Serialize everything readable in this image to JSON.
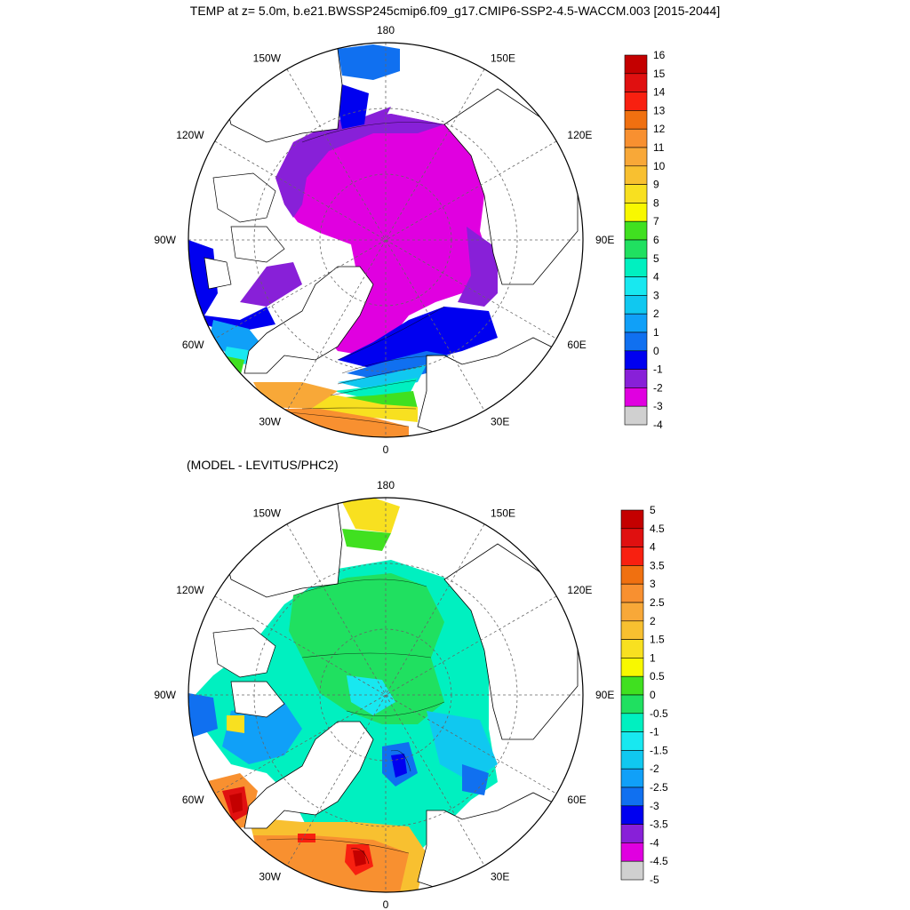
{
  "title": "TEMP at z=   5.0m, b.e21.BWSSP245cmip6.f09_g17.CMIP6-SSP2-4.5-WACCM.003 [2015-2044]",
  "subtitle": "(MODEL - LEVITUS/PHC2)",
  "chart_data": [
    {
      "type": "polar-contour-map",
      "name": "temp",
      "longitude_labels": [
        "180",
        "150E",
        "120E",
        "90E",
        "60E",
        "30E",
        "0",
        "30W",
        "60W",
        "90W",
        "120W",
        "150W"
      ],
      "colorbar": {
        "labels": [
          "16",
          "15",
          "14",
          "13",
          "12",
          "11",
          "10",
          "9",
          "8",
          "7",
          "6",
          "5",
          "4",
          "3",
          "2",
          "1",
          "0",
          "-1",
          "-2",
          "-3",
          "-4"
        ],
        "colors": [
          "#c40000",
          "#e01010",
          "#f82010",
          "#f07010",
          "#f89030",
          "#f8a838",
          "#f8c030",
          "#f8e020",
          "#f8f800",
          "#40e020",
          "#20e060",
          "#00f0c0",
          "#18e8f0",
          "#10c8f0",
          "#10a0f8",
          "#1070f0",
          "#0000f0",
          "#8820d8",
          "#e000e0",
          "#d0d0d0",
          "#707070"
        ]
      }
    },
    {
      "type": "polar-contour-map",
      "name": "diff",
      "longitude_labels": [
        "180",
        "150E",
        "120E",
        "90E",
        "60E",
        "30E",
        "0",
        "30W",
        "60W",
        "90W",
        "120W",
        "150W"
      ],
      "colorbar": {
        "labels": [
          "5",
          "4.5",
          "4",
          "3.5",
          "3",
          "2.5",
          "2",
          "1.5",
          "1",
          "0.5",
          "0",
          "-0.5",
          "-1",
          "-1.5",
          "-2",
          "-2.5",
          "-3",
          "-3.5",
          "-4",
          "-4.5",
          "-5"
        ],
        "colors": [
          "#c40000",
          "#e01010",
          "#f82010",
          "#f07010",
          "#f89030",
          "#f8a838",
          "#f8c030",
          "#f8e020",
          "#f8f800",
          "#40e020",
          "#20e060",
          "#00f0c0",
          "#18e8f0",
          "#10c8f0",
          "#10a0f8",
          "#1070f0",
          "#0000f0",
          "#8820d8",
          "#e000e0",
          "#d0d0d0",
          "#707070"
        ]
      }
    }
  ]
}
